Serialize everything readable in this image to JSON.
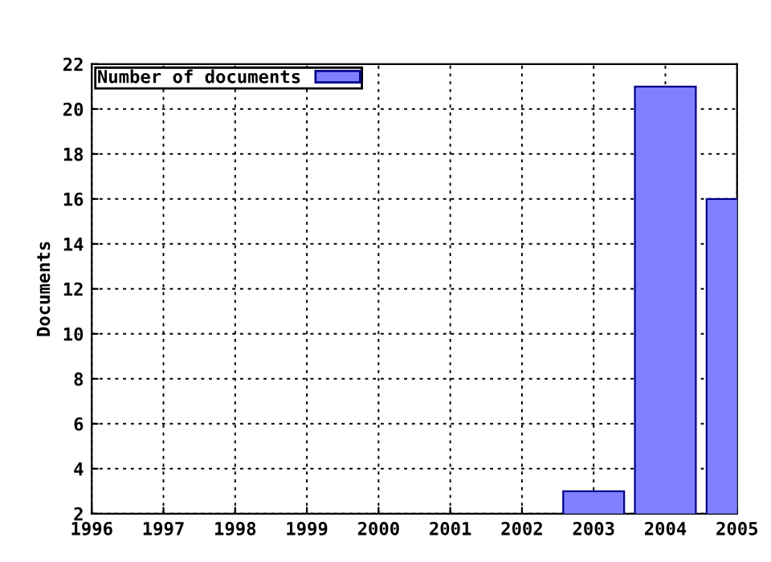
{
  "chart_data": {
    "type": "bar",
    "ylabel": "Documents",
    "x": [
      2003,
      2004,
      2005
    ],
    "series": [
      {
        "name": "Number of documents",
        "color": "#8080ff",
        "values": [
          3,
          21,
          16
        ]
      }
    ],
    "xlim": [
      1996,
      2005
    ],
    "xticks": [
      1996,
      1997,
      1998,
      1999,
      2000,
      2001,
      2002,
      2003,
      2004,
      2005
    ],
    "ylim": [
      2,
      22
    ],
    "yticks": [
      2,
      4,
      6,
      8,
      10,
      12,
      14,
      16,
      18,
      20,
      22
    ],
    "grid": true,
    "legend": "top left"
  }
}
